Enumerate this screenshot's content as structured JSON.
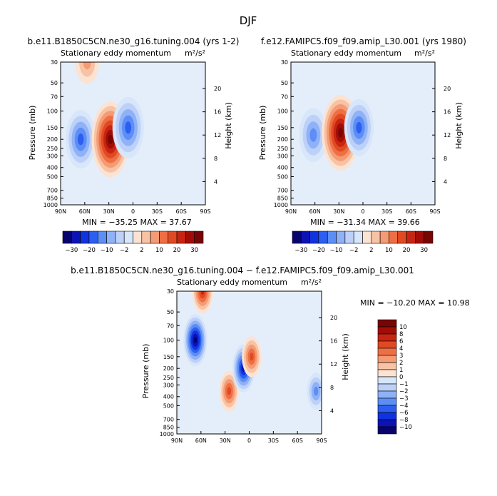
{
  "page_title": "DJF",
  "colors": {
    "neg": [
      "#08046e",
      "#0c13b4",
      "#1033e0",
      "#2c5ff0",
      "#5c8ef5",
      "#8fb1f7",
      "#bcd0f8",
      "#d7e6fa"
    ],
    "pos": [
      "#fbe3d3",
      "#f8c2a4",
      "#f59b74",
      "#ef6f45",
      "#e04a22",
      "#c82412",
      "#a10d06",
      "#780503"
    ]
  },
  "chart_data": [
    {
      "type": "heatmap",
      "title": "b.e11.B1850C5CN.ne30_g16.tuning.004 (yrs 1-2)",
      "subtitle": "Stationary eddy momentum",
      "units": "m²/s²",
      "ylabel": "Pressure (mb)",
      "y2label": "Height (km)",
      "x_ticks": [
        "90N",
        "60N",
        "30N",
        "0",
        "30S",
        "60S",
        "90S"
      ],
      "y_ticks": [
        "30",
        "50",
        "70",
        "100",
        "150",
        "200",
        "250",
        "300",
        "400",
        "500",
        "700",
        "850",
        "1000"
      ],
      "y2_ticks": [
        "20",
        "16",
        "12",
        "8",
        "4"
      ],
      "stats": "MIN = −35.25   MAX =  37.67",
      "colorbar": [
        "−30",
        "−20",
        "−10",
        "−2",
        "2",
        "10",
        "20",
        "30"
      ],
      "features": [
        {
          "lat": 65,
          "p": 200,
          "value": -18
        },
        {
          "lat": 28,
          "p": 200,
          "value": 30
        },
        {
          "lat": 6,
          "p": 150,
          "value": -20
        },
        {
          "lat": 57,
          "p": 30,
          "value": 8
        }
      ]
    },
    {
      "type": "heatmap",
      "title": "f.e12.FAMIPC5.f09_f09.amip_L30.001 (yrs 1980)",
      "subtitle": "Stationary eddy momentum",
      "units": "m²/s²",
      "ylabel": "Pressure (mb)",
      "y2label": "Height (km)",
      "x_ticks": [
        "90N",
        "60N",
        "30N",
        "0",
        "30S",
        "60S",
        "90S"
      ],
      "y_ticks": [
        "30",
        "50",
        "70",
        "100",
        "150",
        "200",
        "250",
        "300",
        "400",
        "500",
        "700",
        "850",
        "1000"
      ],
      "y2_ticks": [
        "20",
        "16",
        "12",
        "8",
        "4"
      ],
      "stats": "MIN = −31.34   MAX =  39.66",
      "colorbar": [
        "−30",
        "−20",
        "−10",
        "−2",
        "2",
        "10",
        "20",
        "30"
      ],
      "features": [
        {
          "lat": 62,
          "p": 180,
          "value": -16
        },
        {
          "lat": 28,
          "p": 170,
          "value": 32
        },
        {
          "lat": 5,
          "p": 150,
          "value": -18
        }
      ]
    },
    {
      "type": "heatmap",
      "title": "b.e11.B1850C5CN.ne30_g16.tuning.004 − f.e12.FAMIPC5.f09_f09.amip_L30.001",
      "subtitle": "Stationary eddy momentum",
      "units": "m²/s²",
      "ylabel": "Pressure (mb)",
      "y2label": "Height (km)",
      "x_ticks": [
        "90N",
        "60N",
        "30N",
        "0",
        "30S",
        "60S",
        "90S"
      ],
      "y_ticks": [
        "30",
        "50",
        "70",
        "100",
        "150",
        "200",
        "250",
        "300",
        "400",
        "500",
        "700",
        "850",
        "1000"
      ],
      "y2_ticks": [
        "20",
        "16",
        "12",
        "8",
        "4"
      ],
      "stats": "MIN = −10.20    MAX =  10.98",
      "colorbar": [
        "10",
        "8",
        "6",
        "4",
        "3",
        "2",
        "1",
        "0",
        "−1",
        "−2",
        "−3",
        "−4",
        "−6",
        "−8",
        "−10"
      ],
      "features": [
        {
          "lat": 67,
          "p": 100,
          "value": -8
        },
        {
          "lat": 58,
          "p": 30,
          "value": 6
        },
        {
          "lat": 25,
          "p": 350,
          "value": 5
        },
        {
          "lat": 7,
          "p": 200,
          "value": -7
        },
        {
          "lat": -3,
          "p": 150,
          "value": 5
        },
        {
          "lat": -83,
          "p": 350,
          "value": -4
        }
      ]
    }
  ]
}
